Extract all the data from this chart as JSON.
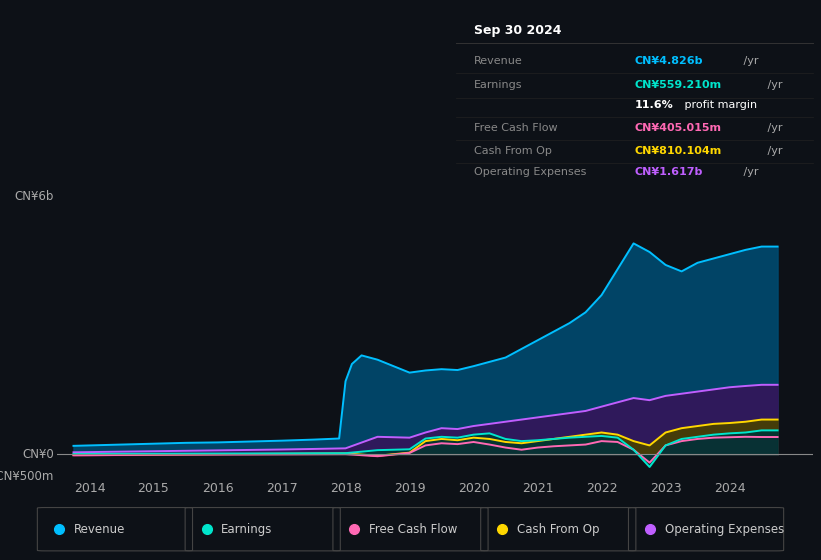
{
  "bg_color": "#0d1117",
  "chart_bg": "#0d1117",
  "title": "Sep 30 2024",
  "info_box_rows": [
    {
      "label": "Revenue",
      "value": "CN¥4.826b /yr",
      "color": "#00bfff"
    },
    {
      "label": "Earnings",
      "value": "CN¥559.210m /yr",
      "color": "#00e5cc"
    },
    {
      "label": "",
      "value": "11.6% profit margin",
      "color": "#ffffff"
    },
    {
      "label": "Free Cash Flow",
      "value": "CN¥405.015m /yr",
      "color": "#ff69b4"
    },
    {
      "label": "Cash From Op",
      "value": "CN¥810.104m /yr",
      "color": "#ffd700"
    },
    {
      "label": "Operating Expenses",
      "value": "CN¥1.617b /yr",
      "color": "#bf5fff"
    }
  ],
  "ylim": [
    -500,
    6000
  ],
  "ytick_labels": [
    "-CN¥500m",
    "CN¥0",
    "CN¥6b"
  ],
  "ytick_vals": [
    -500,
    0,
    6000
  ],
  "xlim": [
    2013.5,
    2025.3
  ],
  "xticks": [
    2014,
    2015,
    2016,
    2017,
    2018,
    2019,
    2020,
    2021,
    2022,
    2023,
    2024
  ],
  "zero_line_color": "#888888",
  "series": {
    "revenue": {
      "color": "#00bfff",
      "fill_color": "#004a70",
      "label": "Revenue",
      "x": [
        2013.75,
        2014.0,
        2014.5,
        2015.0,
        2015.5,
        2016.0,
        2016.5,
        2017.0,
        2017.5,
        2017.9,
        2018.0,
        2018.1,
        2018.25,
        2018.5,
        2018.75,
        2019.0,
        2019.25,
        2019.5,
        2019.75,
        2020.0,
        2020.25,
        2020.5,
        2020.75,
        2021.0,
        2021.25,
        2021.5,
        2021.75,
        2022.0,
        2022.25,
        2022.5,
        2022.75,
        2023.0,
        2023.25,
        2023.5,
        2023.75,
        2024.0,
        2024.25,
        2024.5,
        2024.75
      ],
      "y": [
        200,
        210,
        230,
        250,
        270,
        280,
        300,
        320,
        345,
        370,
        1700,
        2100,
        2300,
        2200,
        2050,
        1900,
        1950,
        1980,
        1960,
        2050,
        2150,
        2250,
        2450,
        2650,
        2850,
        3050,
        3300,
        3700,
        4300,
        4900,
        4700,
        4400,
        4250,
        4450,
        4550,
        4650,
        4750,
        4826,
        4826
      ]
    },
    "earnings": {
      "color": "#00e5cc",
      "fill_color": "#003535",
      "label": "Earnings",
      "x": [
        2013.75,
        2014.0,
        2014.5,
        2015.0,
        2015.5,
        2016.0,
        2016.5,
        2017.0,
        2017.5,
        2018.0,
        2018.5,
        2019.0,
        2019.25,
        2019.5,
        2019.75,
        2020.0,
        2020.25,
        2020.5,
        2020.75,
        2021.0,
        2021.25,
        2021.5,
        2021.75,
        2022.0,
        2022.25,
        2022.5,
        2022.75,
        2023.0,
        2023.25,
        2023.5,
        2023.75,
        2024.0,
        2024.25,
        2024.5,
        2024.75
      ],
      "y": [
        10,
        12,
        15,
        17,
        19,
        21,
        23,
        25,
        28,
        30,
        100,
        120,
        370,
        410,
        390,
        460,
        490,
        360,
        310,
        330,
        360,
        390,
        410,
        430,
        390,
        110,
        -290,
        210,
        360,
        410,
        460,
        490,
        510,
        559,
        559
      ]
    },
    "free_cash_flow": {
      "color": "#ff69b4",
      "fill_color": "#5a1030",
      "label": "Free Cash Flow",
      "x": [
        2013.75,
        2014.0,
        2014.5,
        2015.0,
        2015.5,
        2016.0,
        2016.5,
        2017.0,
        2017.5,
        2018.0,
        2018.5,
        2019.0,
        2019.25,
        2019.5,
        2019.75,
        2020.0,
        2020.25,
        2020.5,
        2020.75,
        2021.0,
        2021.25,
        2021.5,
        2021.75,
        2022.0,
        2022.25,
        2022.5,
        2022.75,
        2023.0,
        2023.25,
        2023.5,
        2023.75,
        2024.0,
        2024.25,
        2024.5,
        2024.75
      ],
      "y": [
        -20,
        -18,
        -12,
        -8,
        -5,
        -3,
        -1,
        2,
        5,
        8,
        -40,
        35,
        210,
        260,
        240,
        290,
        230,
        160,
        110,
        160,
        190,
        210,
        230,
        310,
        290,
        110,
        -190,
        210,
        310,
        360,
        390,
        400,
        410,
        405,
        405
      ]
    },
    "cash_from_op": {
      "color": "#ffd700",
      "fill_color": "#484000",
      "label": "Cash From Op",
      "x": [
        2013.75,
        2014.0,
        2014.5,
        2015.0,
        2015.5,
        2016.0,
        2016.5,
        2017.0,
        2017.5,
        2018.0,
        2018.5,
        2019.0,
        2019.25,
        2019.5,
        2019.75,
        2020.0,
        2020.25,
        2020.5,
        2020.75,
        2021.0,
        2021.25,
        2021.5,
        2021.75,
        2022.0,
        2022.25,
        2022.5,
        2022.75,
        2023.0,
        2023.25,
        2023.5,
        2023.75,
        2024.0,
        2024.25,
        2024.5,
        2024.75
      ],
      "y": [
        -10,
        -8,
        -4,
        0,
        4,
        8,
        12,
        16,
        20,
        25,
        -30,
        42,
        310,
        360,
        330,
        390,
        360,
        290,
        260,
        310,
        360,
        410,
        460,
        510,
        460,
        310,
        210,
        510,
        610,
        660,
        710,
        730,
        760,
        810,
        810
      ]
    },
    "operating_expenses": {
      "color": "#bf5fff",
      "fill_color": "#35155a",
      "label": "Operating Expenses",
      "x": [
        2013.75,
        2014.0,
        2014.5,
        2015.0,
        2015.5,
        2016.0,
        2016.5,
        2017.0,
        2017.5,
        2018.0,
        2018.5,
        2019.0,
        2019.25,
        2019.5,
        2019.75,
        2020.0,
        2020.25,
        2020.5,
        2020.75,
        2021.0,
        2021.25,
        2021.5,
        2021.75,
        2022.0,
        2022.25,
        2022.5,
        2022.75,
        2023.0,
        2023.25,
        2023.5,
        2023.75,
        2024.0,
        2024.25,
        2024.5,
        2024.75
      ],
      "y": [
        50,
        55,
        65,
        75,
        85,
        95,
        105,
        115,
        128,
        142,
        410,
        390,
        510,
        610,
        590,
        660,
        710,
        760,
        810,
        860,
        910,
        960,
        1010,
        1110,
        1210,
        1310,
        1260,
        1360,
        1410,
        1460,
        1510,
        1560,
        1590,
        1617,
        1617
      ]
    }
  },
  "legend": [
    {
      "label": "Revenue",
      "color": "#00bfff"
    },
    {
      "label": "Earnings",
      "color": "#00e5cc"
    },
    {
      "label": "Free Cash Flow",
      "color": "#ff69b4"
    },
    {
      "label": "Cash From Op",
      "color": "#ffd700"
    },
    {
      "label": "Operating Expenses",
      "color": "#bf5fff"
    }
  ]
}
